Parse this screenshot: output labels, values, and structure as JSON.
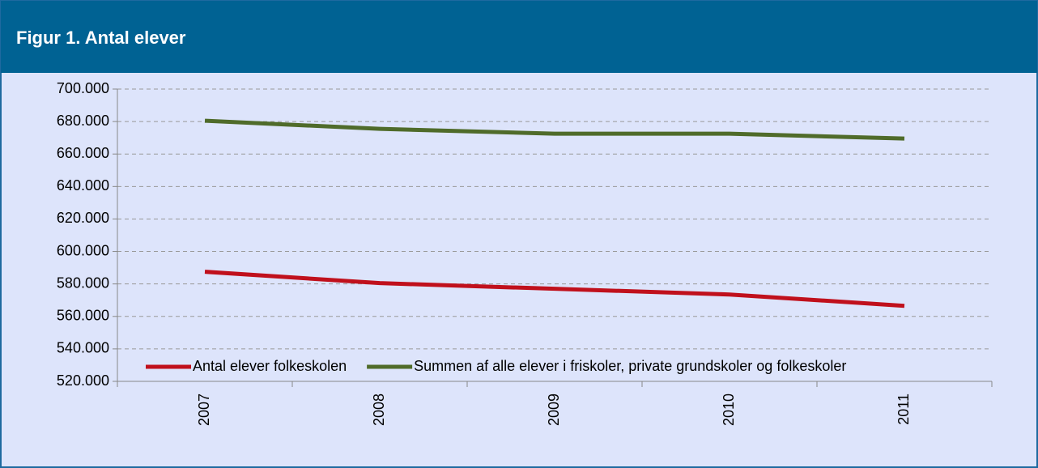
{
  "chart_data": {
    "type": "line",
    "title": "Figur 1. Antal elever",
    "categories": [
      "2007",
      "2008",
      "2009",
      "2010",
      "2011"
    ],
    "series": [
      {
        "name": "Antal elever folkeskolen",
        "color": "#c0101c",
        "values": [
          587500,
          580500,
          577000,
          573500,
          566500
        ]
      },
      {
        "name": "Summen af alle elever i friskoler, private grundskoler og folkeskoler",
        "color": "#4f6b2a",
        "values": [
          680500,
          675500,
          672500,
          672500,
          669500
        ]
      }
    ],
    "ylim": [
      520000,
      700000
    ],
    "yticks": [
      {
        "value": 520000,
        "label": "520.000"
      },
      {
        "value": 540000,
        "label": "540.000"
      },
      {
        "value": 560000,
        "label": "560.000"
      },
      {
        "value": 580000,
        "label": "580.000"
      },
      {
        "value": 600000,
        "label": "600.000"
      },
      {
        "value": 620000,
        "label": "620.000"
      },
      {
        "value": 640000,
        "label": "640.000"
      },
      {
        "value": 660000,
        "label": "660.000"
      },
      {
        "value": 680000,
        "label": "680.000"
      },
      {
        "value": 700000,
        "label": "700.000"
      }
    ],
    "grid": true,
    "legend": "bottom"
  }
}
